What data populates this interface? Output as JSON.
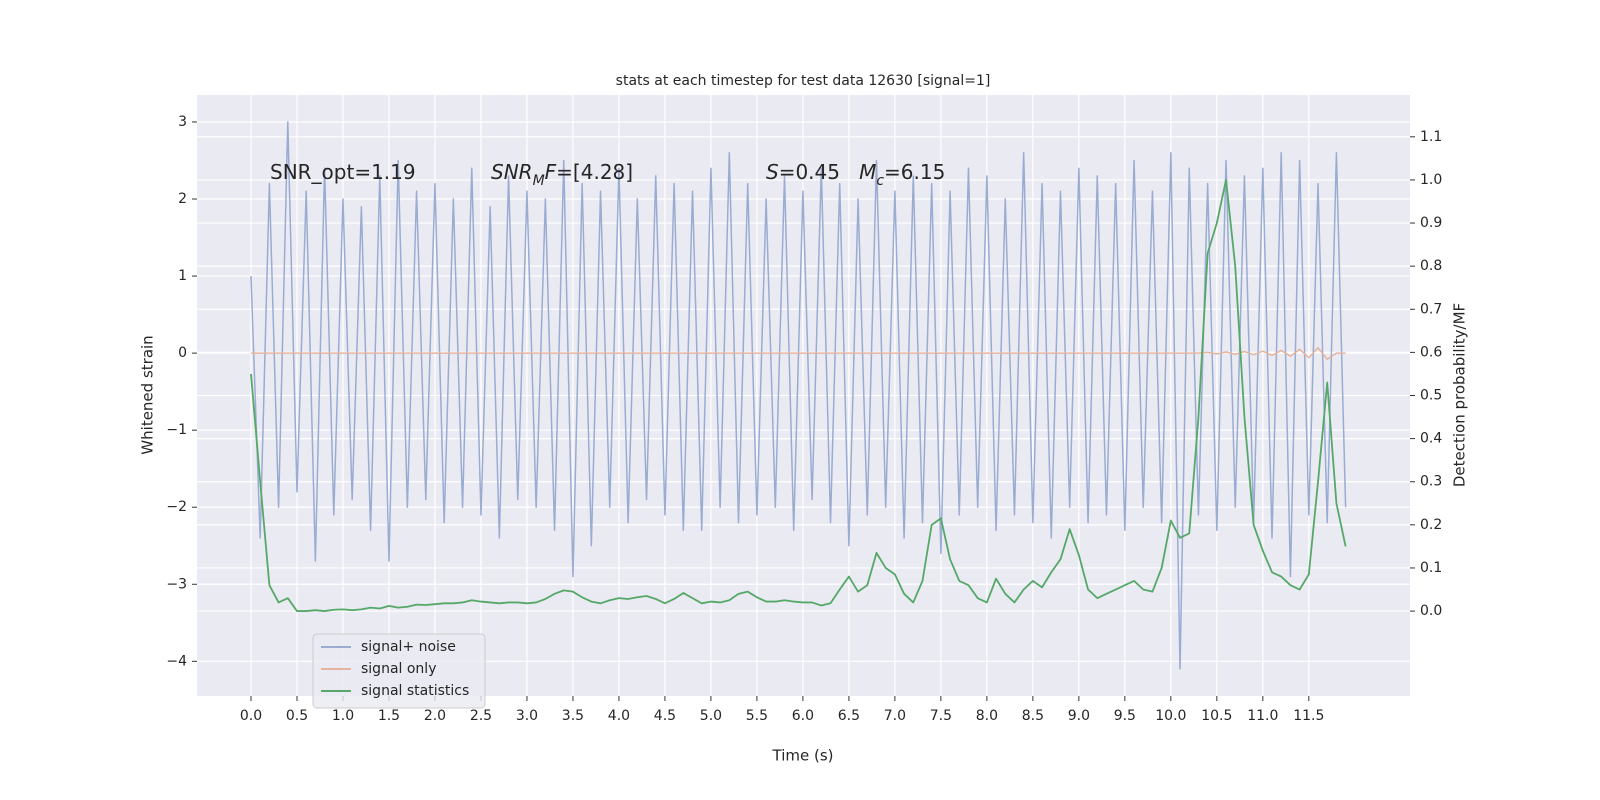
{
  "chart_data": {
    "type": "line",
    "title": "stats at each timestep for test data 12630 [signal=1]",
    "xlabel": "Time (s)",
    "ylabel": "Whitened strain",
    "y2label": "Detection probability/MF",
    "annotations": [
      [
        {
          "text": "SNR_opt=1.19"
        }
      ],
      [
        {
          "text": "SNR",
          "style": "italic"
        },
        {
          "text": "M",
          "style": "sub"
        },
        {
          "text": "F",
          "style": "italic"
        },
        {
          "text": "=[4.28]"
        }
      ],
      [
        {
          "text": "S",
          "style": "italic"
        },
        {
          "text": "=0.45   "
        },
        {
          "text": "M",
          "style": "italic"
        },
        {
          "text": "c",
          "style": "sub"
        },
        {
          "text": "=6.15"
        }
      ]
    ],
    "xlim": [
      -0.587,
      12.6
    ],
    "ylim": [
      -4.45,
      3.35
    ],
    "y2lim": [
      -0.197,
      1.197
    ],
    "xticks": [
      {
        "value": 0,
        "label": "0.0"
      },
      0.5,
      {
        "value": 1,
        "label": "1.0"
      },
      1.5,
      {
        "value": 2,
        "label": "2.0"
      },
      2.5,
      {
        "value": 3,
        "label": "3.0"
      },
      3.5,
      {
        "value": 4,
        "label": "4.0"
      },
      4.5,
      {
        "value": 5,
        "label": "5.0"
      },
      5.5,
      {
        "value": 6,
        "label": "6.0"
      },
      6.5,
      {
        "value": 7,
        "label": "7.0"
      },
      7.5,
      {
        "value": 8,
        "label": "8.0"
      },
      8.5,
      {
        "value": 9,
        "label": "9.0"
      },
      9.5,
      {
        "value": 10,
        "label": "10.0"
      },
      10.5,
      {
        "value": 11,
        "label": "11.0"
      },
      11.5
    ],
    "yticks": [
      {
        "value": -4,
        "label": "−4"
      },
      {
        "value": -3,
        "label": "−3"
      },
      {
        "value": -2,
        "label": "−2"
      },
      {
        "value": -1,
        "label": "−1"
      },
      0,
      1,
      2,
      3
    ],
    "y2ticks": [
      {
        "value": 0,
        "label": "0.0"
      },
      0.1,
      0.2,
      0.3,
      0.4,
      0.5,
      0.6,
      0.7,
      0.8,
      0.9,
      {
        "value": 1,
        "label": "1.0"
      },
      1.1
    ],
    "grid": true,
    "legend": "lower left",
    "x": [
      0.0,
      0.1,
      0.2,
      0.3,
      0.4,
      0.5,
      0.6,
      0.7,
      0.8,
      0.9,
      1.0,
      1.1,
      1.2,
      1.3,
      1.4,
      1.5,
      1.6,
      1.7,
      1.8,
      1.9,
      2.0,
      2.1,
      2.2,
      2.3,
      2.4,
      2.5,
      2.6,
      2.7,
      2.8,
      2.9,
      3.0,
      3.1,
      3.2,
      3.3,
      3.4,
      3.5,
      3.6,
      3.7,
      3.8,
      3.9,
      4.0,
      4.1,
      4.2,
      4.3,
      4.4,
      4.5,
      4.6,
      4.7,
      4.8,
      4.9,
      5.0,
      5.1,
      5.2,
      5.3,
      5.4,
      5.5,
      5.6,
      5.7,
      5.8,
      5.9,
      6.0,
      6.1,
      6.2,
      6.3,
      6.4,
      6.5,
      6.6,
      6.7,
      6.8,
      6.9,
      7.0,
      7.1,
      7.2,
      7.3,
      7.4,
      7.5,
      7.6,
      7.7,
      7.8,
      7.9,
      8.0,
      8.1,
      8.2,
      8.3,
      8.4,
      8.5,
      8.6,
      8.7,
      8.8,
      8.9,
      9.0,
      9.1,
      9.2,
      9.3,
      9.4,
      9.5,
      9.6,
      9.7,
      9.8,
      9.9,
      10.0,
      10.1,
      10.2,
      10.3,
      10.4,
      10.5,
      10.6,
      10.7,
      10.8,
      10.9,
      11.0,
      11.1,
      11.2,
      11.3,
      11.4,
      11.5,
      11.6,
      11.7,
      11.8,
      11.9
    ],
    "series": [
      {
        "name": "signal+ noise",
        "color": "#9aacd2",
        "values": [
          1.0,
          -2.4,
          2.2,
          -2.0,
          3.0,
          -1.8,
          2.1,
          -2.7,
          2.4,
          -2.1,
          2.0,
          -1.9,
          1.9,
          -2.3,
          2.3,
          -2.7,
          2.5,
          -2.0,
          2.1,
          -1.9,
          2.2,
          -2.2,
          2.0,
          -2.0,
          2.4,
          -2.1,
          1.9,
          -2.4,
          2.3,
          -1.9,
          2.1,
          -2.0,
          2.0,
          -2.3,
          2.5,
          -2.9,
          2.2,
          -2.5,
          2.1,
          -2.0,
          2.4,
          -2.2,
          2.0,
          -1.9,
          2.3,
          -2.1,
          2.2,
          -2.3,
          2.1,
          -2.3,
          2.4,
          -2.0,
          2.6,
          -2.2,
          2.2,
          -2.1,
          2.0,
          -2.0,
          2.3,
          -2.3,
          2.1,
          -1.9,
          2.4,
          -2.2,
          2.2,
          -2.5,
          2.0,
          -2.1,
          2.5,
          -2.0,
          2.1,
          -2.4,
          2.3,
          -2.2,
          2.2,
          -2.6,
          2.1,
          -2.1,
          2.4,
          -2.0,
          2.3,
          -2.3,
          2.0,
          -2.1,
          2.6,
          -2.2,
          2.2,
          -2.4,
          2.1,
          -2.0,
          2.4,
          -2.2,
          2.3,
          -2.1,
          2.2,
          -2.3,
          2.5,
          -2.0,
          2.1,
          -2.2,
          2.6,
          -4.1,
          2.4,
          -2.1,
          2.2,
          -2.3,
          2.5,
          -2.0,
          2.3,
          -2.2,
          2.4,
          -2.4,
          2.6,
          -2.9,
          2.5,
          -2.1,
          2.2,
          -2.2,
          2.6,
          -2.0
        ]
      },
      {
        "name": "signal only",
        "color": "#e6b39f",
        "values": [
          0,
          0,
          0,
          0,
          0,
          0,
          0,
          0,
          0,
          0,
          0,
          0,
          0,
          0,
          0,
          0,
          0,
          0,
          0,
          0,
          0,
          0,
          0,
          0,
          0,
          0,
          0,
          0,
          0,
          0,
          0,
          0,
          0,
          0,
          0,
          0,
          0,
          0,
          0,
          0,
          0,
          0,
          0,
          0,
          0,
          0,
          0,
          0,
          0,
          0,
          0,
          0,
          0,
          0,
          0,
          0,
          0,
          0,
          0,
          0,
          0,
          0,
          0,
          0,
          0,
          0,
          0,
          0,
          0,
          0,
          0,
          0,
          0,
          0,
          0,
          0,
          0,
          0,
          0,
          0,
          0,
          0,
          0,
          0,
          0,
          0,
          0,
          0,
          0,
          0,
          0,
          0,
          0,
          0,
          0,
          0,
          0,
          0,
          0,
          0,
          0,
          0,
          0,
          0,
          0.01,
          -0.01,
          0.015,
          -0.015,
          0.02,
          -0.02,
          0.025,
          -0.03,
          0.035,
          -0.04,
          0.05,
          -0.06,
          0.07,
          -0.08,
          0,
          0
        ]
      },
      {
        "name": "signal statistics",
        "color": "#55a868",
        "axis": "y2",
        "values": [
          0.55,
          0.3,
          0.06,
          0.02,
          0.03,
          0.0,
          0.0,
          0.002,
          0.0,
          0.003,
          0.004,
          0.002,
          0.004,
          0.008,
          0.006,
          0.012,
          0.008,
          0.01,
          0.015,
          0.014,
          0.016,
          0.018,
          0.018,
          0.02,
          0.025,
          0.022,
          0.02,
          0.018,
          0.02,
          0.02,
          0.018,
          0.02,
          0.028,
          0.04,
          0.048,
          0.045,
          0.032,
          0.022,
          0.018,
          0.025,
          0.03,
          0.028,
          0.032,
          0.035,
          0.028,
          0.018,
          0.028,
          0.042,
          0.03,
          0.018,
          0.022,
          0.02,
          0.025,
          0.04,
          0.045,
          0.032,
          0.022,
          0.022,
          0.025,
          0.022,
          0.02,
          0.02,
          0.013,
          0.018,
          0.05,
          0.08,
          0.045,
          0.06,
          0.135,
          0.1,
          0.085,
          0.04,
          0.02,
          0.07,
          0.2,
          0.215,
          0.12,
          0.07,
          0.06,
          0.03,
          0.02,
          0.075,
          0.04,
          0.02,
          0.05,
          0.07,
          0.055,
          0.09,
          0.12,
          0.19,
          0.13,
          0.05,
          0.03,
          0.04,
          0.05,
          0.06,
          0.07,
          0.05,
          0.045,
          0.1,
          0.21,
          0.17,
          0.18,
          0.45,
          0.83,
          0.9,
          1.0,
          0.8,
          0.45,
          0.2,
          0.14,
          0.09,
          0.08,
          0.06,
          0.05,
          0.085,
          0.3,
          0.53,
          0.25,
          0.15
        ]
      }
    ]
  }
}
